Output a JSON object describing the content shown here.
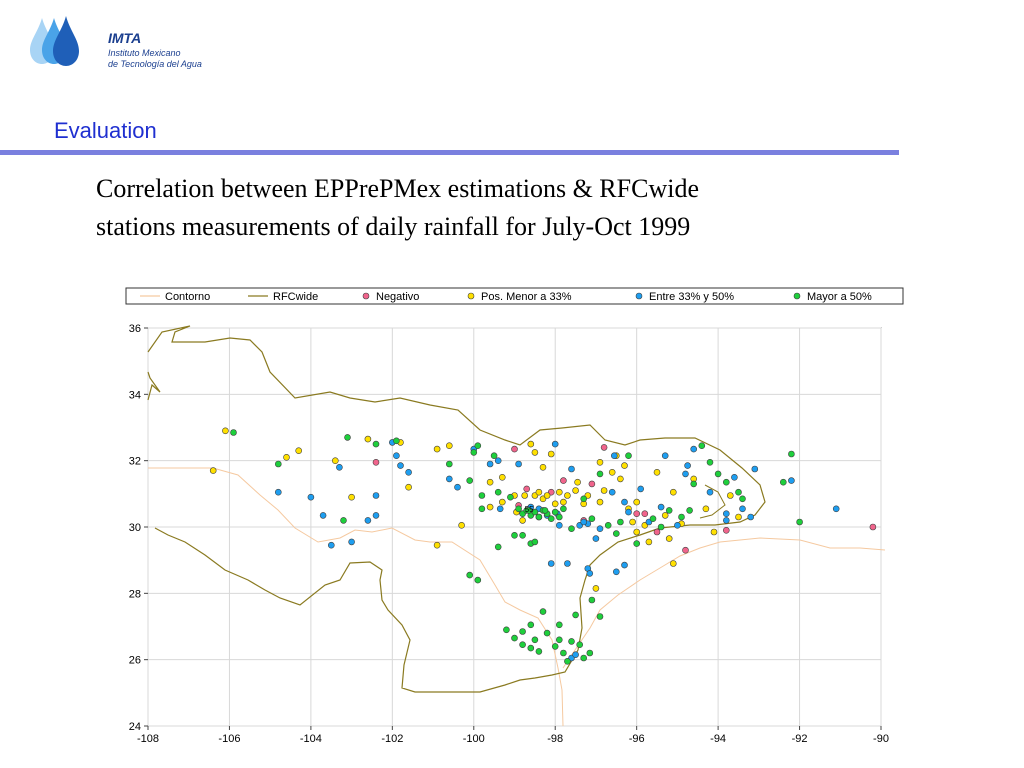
{
  "header": {
    "logo": {
      "name": "IMTA",
      "line1": "Instituto Mexicano",
      "line2": "de Tecnología del Agua"
    },
    "section_title": "Evaluation",
    "heading_line1": "Correlation between EPPrePMex estimations & RFCwide",
    "heading_line2": "stations measurements of daily rainfall for July-Oct 1999"
  },
  "colors": {
    "accent": "#1f2fd0",
    "rule": "#7a80df",
    "contour": "#f5c9a0",
    "rfcwide": "#8a7a20",
    "negativo": "#f0648c",
    "pos_menor": "#ffe000",
    "entre": "#1e9ef0",
    "mayor": "#1ecf3c"
  },
  "chart_data": {
    "type": "scatter",
    "xlim": [
      -108,
      -90
    ],
    "ylim": [
      24,
      36
    ],
    "x_ticks": [
      -108,
      -106,
      -104,
      -102,
      -100,
      -98,
      -96,
      -94,
      -92,
      -90
    ],
    "y_ticks": [
      24,
      26,
      28,
      30,
      32,
      34,
      36
    ],
    "grid": true,
    "legend_position": "top",
    "annotation": {
      "text": "55",
      "x": -98.7,
      "y": 30.55
    },
    "legend": [
      {
        "label": "Contorno",
        "kind": "line"
      },
      {
        "label": "RFCwide",
        "kind": "line"
      },
      {
        "label": "Negativo",
        "kind": "dot"
      },
      {
        "label": "Pos. Menor a 33%",
        "kind": "dot"
      },
      {
        "label": "Entre 33% y 50%",
        "kind": "dot"
      },
      {
        "label": "Mayor a 50%",
        "kind": "dot"
      }
    ],
    "series": [
      {
        "name": "Negativo",
        "points": [
          [
            -102.4,
            31.95
          ],
          [
            -99,
            32.35
          ],
          [
            -98.7,
            31.15
          ],
          [
            -98.9,
            30.65
          ],
          [
            -98.1,
            31.05
          ],
          [
            -97.8,
            31.4
          ],
          [
            -97.3,
            30.2
          ],
          [
            -97.1,
            31.3
          ],
          [
            -96.8,
            32.4
          ],
          [
            -96,
            30.4
          ],
          [
            -95.8,
            30.4
          ],
          [
            -95.5,
            29.85
          ],
          [
            -94.8,
            29.3
          ],
          [
            -93.8,
            29.9
          ],
          [
            -90.2,
            30
          ]
        ]
      },
      {
        "name": "Pos. Menor a 33%",
        "points": [
          [
            -106.4,
            31.7
          ],
          [
            -106.1,
            32.9
          ],
          [
            -104.6,
            32.1
          ],
          [
            -104.3,
            32.3
          ],
          [
            -103.4,
            32
          ],
          [
            -103,
            30.9
          ],
          [
            -102.6,
            32.65
          ],
          [
            -101.8,
            32.55
          ],
          [
            -101.6,
            31.2
          ],
          [
            -100.9,
            32.35
          ],
          [
            -100.9,
            29.45
          ],
          [
            -100.6,
            32.45
          ],
          [
            -100.3,
            30.05
          ],
          [
            -99.6,
            31.35
          ],
          [
            -99.3,
            30.75
          ],
          [
            -99,
            30.95
          ],
          [
            -98.6,
            32.5
          ],
          [
            -98.5,
            32.25
          ],
          [
            -98.3,
            31.8
          ],
          [
            -98.1,
            32.2
          ],
          [
            -97.8,
            30.75
          ],
          [
            -97.5,
            31.1
          ],
          [
            -97.2,
            30.95
          ],
          [
            -96.9,
            30.75
          ],
          [
            -96.8,
            31.1
          ],
          [
            -96.6,
            31.65
          ],
          [
            -96.4,
            31.45
          ],
          [
            -96.3,
            31.85
          ],
          [
            -96.2,
            30.55
          ],
          [
            -96,
            29.85
          ],
          [
            -95.8,
            30.05
          ],
          [
            -95.5,
            31.65
          ],
          [
            -95.3,
            30.35
          ],
          [
            -95.2,
            29.65
          ],
          [
            -95.1,
            31.05
          ],
          [
            -94.9,
            30.1
          ],
          [
            -94.6,
            31.45
          ],
          [
            -94.3,
            30.55
          ],
          [
            -94.1,
            29.85
          ],
          [
            -93.7,
            30.95
          ],
          [
            -93.5,
            30.3
          ],
          [
            -99.6,
            30.6
          ],
          [
            -99.3,
            31.5
          ],
          [
            -98.95,
            30.45
          ],
          [
            -98.8,
            30.2
          ],
          [
            -98.75,
            30.95
          ],
          [
            -98.5,
            30.95
          ],
          [
            -98.4,
            31.05
          ],
          [
            -98.3,
            30.85
          ],
          [
            -98.2,
            30.95
          ],
          [
            -98,
            30.7
          ],
          [
            -97.9,
            31.05
          ],
          [
            -97.7,
            30.95
          ],
          [
            -97.45,
            31.35
          ],
          [
            -97.3,
            30.7
          ],
          [
            -96.9,
            31.95
          ],
          [
            -96.5,
            32.15
          ],
          [
            -96,
            30.75
          ],
          [
            -95.7,
            29.55
          ],
          [
            -95.1,
            28.9
          ],
          [
            -97,
            28.15
          ],
          [
            -96.1,
            30.15
          ]
        ]
      },
      {
        "name": "Entre 33% y 50%",
        "points": [
          [
            -104.8,
            31.05
          ],
          [
            -104,
            30.9
          ],
          [
            -103.7,
            30.35
          ],
          [
            -103.5,
            29.45
          ],
          [
            -103.3,
            31.8
          ],
          [
            -103,
            29.55
          ],
          [
            -102.6,
            30.2
          ],
          [
            -102.4,
            30.35
          ],
          [
            -102.4,
            30.95
          ],
          [
            -102,
            32.55
          ],
          [
            -101.9,
            32.15
          ],
          [
            -101.8,
            31.85
          ],
          [
            -101.6,
            31.65
          ],
          [
            -100.6,
            31.45
          ],
          [
            -100.4,
            31.2
          ],
          [
            -100,
            32.35
          ],
          [
            -99.6,
            31.9
          ],
          [
            -99.4,
            32
          ],
          [
            -98.9,
            31.9
          ],
          [
            -98.6,
            30.6
          ],
          [
            -98.4,
            30.55
          ],
          [
            -98.2,
            30.35
          ],
          [
            -98,
            32.5
          ],
          [
            -97.9,
            30.05
          ],
          [
            -97.6,
            31.75
          ],
          [
            -97.4,
            30.05
          ],
          [
            -97.2,
            30.1
          ],
          [
            -97,
            29.65
          ],
          [
            -96.9,
            29.95
          ],
          [
            -96.6,
            31.05
          ],
          [
            -96.3,
            30.75
          ],
          [
            -96.2,
            30.45
          ],
          [
            -95.9,
            31.15
          ],
          [
            -95.7,
            30.15
          ],
          [
            -95.4,
            30.6
          ],
          [
            -95.3,
            32.15
          ],
          [
            -95,
            30.05
          ],
          [
            -94.8,
            31.6
          ],
          [
            -94.6,
            32.35
          ],
          [
            -94.2,
            31.05
          ],
          [
            -93.8,
            30.4
          ],
          [
            -93.6,
            31.5
          ],
          [
            -93.4,
            30.55
          ],
          [
            -93.2,
            30.3
          ],
          [
            -93.1,
            31.75
          ],
          [
            -92.2,
            31.4
          ],
          [
            -91.1,
            30.55
          ],
          [
            -98.1,
            28.9
          ],
          [
            -97.7,
            28.9
          ],
          [
            -97.2,
            28.75
          ],
          [
            -97.15,
            28.6
          ],
          [
            -96.5,
            28.65
          ],
          [
            -96.3,
            28.85
          ],
          [
            -97.6,
            26.05
          ],
          [
            -97.5,
            26.15
          ],
          [
            -97.3,
            30.15
          ],
          [
            -96.55,
            32.15
          ],
          [
            -98.4,
            30.3
          ],
          [
            -97.95,
            30.4
          ],
          [
            -99.35,
            30.55
          ],
          [
            -94.75,
            31.85
          ],
          [
            -93.8,
            30.2
          ]
        ]
      },
      {
        "name": "Mayor a 50%",
        "points": [
          [
            -105.9,
            32.85
          ],
          [
            -104.8,
            31.9
          ],
          [
            -103.2,
            30.2
          ],
          [
            -103.1,
            32.7
          ],
          [
            -102.4,
            32.5
          ],
          [
            -101.9,
            32.6
          ],
          [
            -100.6,
            31.9
          ],
          [
            -100.1,
            31.4
          ],
          [
            -100,
            32.25
          ],
          [
            -99.9,
            32.45
          ],
          [
            -99.8,
            30.95
          ],
          [
            -99.5,
            32.15
          ],
          [
            -99.4,
            31.05
          ],
          [
            -99.1,
            30.9
          ],
          [
            -99,
            29.75
          ],
          [
            -98.9,
            30.55
          ],
          [
            -98.8,
            30.4
          ],
          [
            -98.7,
            30.5
          ],
          [
            -98.6,
            30.35
          ],
          [
            -98.5,
            30.45
          ],
          [
            -98.4,
            30.3
          ],
          [
            -98.3,
            30.5
          ],
          [
            -98.2,
            30.4
          ],
          [
            -98.1,
            30.25
          ],
          [
            -98,
            30.45
          ],
          [
            -97.9,
            30.3
          ],
          [
            -97.8,
            30.55
          ],
          [
            -97.6,
            29.95
          ],
          [
            -97.3,
            30.85
          ],
          [
            -97.1,
            30.25
          ],
          [
            -96.9,
            31.6
          ],
          [
            -96.7,
            30.05
          ],
          [
            -96.5,
            29.8
          ],
          [
            -96.4,
            30.15
          ],
          [
            -96.2,
            32.15
          ],
          [
            -96,
            29.5
          ],
          [
            -95.6,
            30.25
          ],
          [
            -95.4,
            30
          ],
          [
            -95.2,
            30.5
          ],
          [
            -94.9,
            30.3
          ],
          [
            -94.7,
            30.5
          ],
          [
            -94.6,
            31.3
          ],
          [
            -94.4,
            32.45
          ],
          [
            -94.2,
            31.95
          ],
          [
            -94,
            31.6
          ],
          [
            -93.8,
            31.35
          ],
          [
            -93.5,
            31.05
          ],
          [
            -93.4,
            30.85
          ],
          [
            -92.4,
            31.35
          ],
          [
            -92.2,
            32.2
          ],
          [
            -92,
            30.15
          ],
          [
            -100.1,
            28.55
          ],
          [
            -99.9,
            28.4
          ],
          [
            -99.4,
            29.4
          ],
          [
            -99.2,
            26.9
          ],
          [
            -99,
            26.65
          ],
          [
            -98.8,
            26.45
          ],
          [
            -98.6,
            26.35
          ],
          [
            -98.5,
            26.6
          ],
          [
            -98.3,
            27.45
          ],
          [
            -98.2,
            26.8
          ],
          [
            -98,
            26.4
          ],
          [
            -97.9,
            26.6
          ],
          [
            -97.8,
            26.2
          ],
          [
            -97.6,
            26.55
          ],
          [
            -97.5,
            27.35
          ],
          [
            -97.3,
            26.05
          ],
          [
            -97.1,
            27.8
          ],
          [
            -96.9,
            27.3
          ],
          [
            -98.8,
            29.75
          ],
          [
            -98.6,
            29.5
          ],
          [
            -98.5,
            29.55
          ],
          [
            -99.8,
            30.55
          ],
          [
            -98.8,
            26.85
          ],
          [
            -98.6,
            27.05
          ],
          [
            -98.4,
            26.25
          ],
          [
            -97.4,
            26.45
          ],
          [
            -97.15,
            26.2
          ],
          [
            -97.7,
            25.95
          ],
          [
            -97.9,
            27.05
          ],
          [
            -98.65,
            30.5
          ],
          [
            -98.25,
            30.5
          ]
        ]
      }
    ]
  }
}
